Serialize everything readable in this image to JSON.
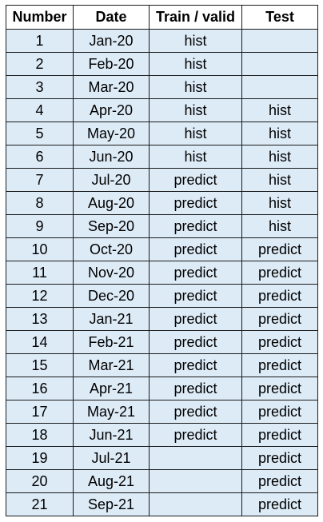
{
  "table": {
    "headers": [
      "Number",
      "Date",
      "Train / valid",
      "Test"
    ],
    "rows": [
      [
        "1",
        "Jan-20",
        "hist",
        ""
      ],
      [
        "2",
        "Feb-20",
        "hist",
        ""
      ],
      [
        "3",
        "Mar-20",
        "hist",
        ""
      ],
      [
        "4",
        "Apr-20",
        "hist",
        "hist"
      ],
      [
        "5",
        "May-20",
        "hist",
        "hist"
      ],
      [
        "6",
        "Jun-20",
        "hist",
        "hist"
      ],
      [
        "7",
        "Jul-20",
        "predict",
        "hist"
      ],
      [
        "8",
        "Aug-20",
        "predict",
        "hist"
      ],
      [
        "9",
        "Sep-20",
        "predict",
        "hist"
      ],
      [
        "10",
        "Oct-20",
        "predict",
        "predict"
      ],
      [
        "11",
        "Nov-20",
        "predict",
        "predict"
      ],
      [
        "12",
        "Dec-20",
        "predict",
        "predict"
      ],
      [
        "13",
        "Jan-21",
        "predict",
        "predict"
      ],
      [
        "14",
        "Feb-21",
        "predict",
        "predict"
      ],
      [
        "15",
        "Mar-21",
        "predict",
        "predict"
      ],
      [
        "16",
        "Apr-21",
        "predict",
        "predict"
      ],
      [
        "17",
        "May-21",
        "predict",
        "predict"
      ],
      [
        "18",
        "Jun-21",
        "predict",
        "predict"
      ],
      [
        "19",
        "Jul-21",
        "",
        "predict"
      ],
      [
        "20",
        "Aug-21",
        "",
        "predict"
      ],
      [
        "21",
        "Sep-21",
        "",
        "predict"
      ]
    ]
  },
  "colors": {
    "cell_fill": "#ddebf7",
    "header_fill": "#ffffff",
    "border": "#1a1a1a"
  }
}
